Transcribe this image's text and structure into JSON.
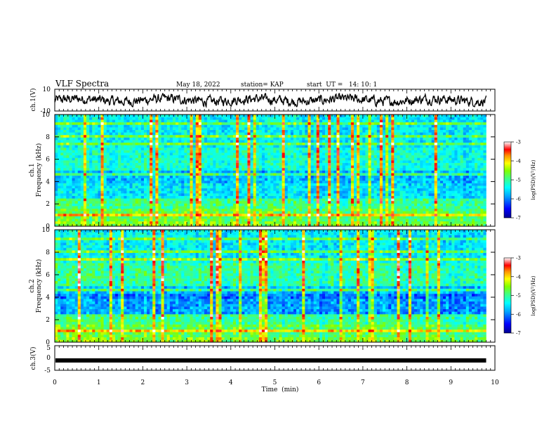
{
  "header": {
    "title": "VLF Spectra",
    "date": "May 18, 2022",
    "station": "station= KAP",
    "start_ut": "start  UT =   14: 10: 1"
  },
  "chart_data": [
    {
      "type": "line",
      "panel": "ch1-waveform",
      "ylabel": "ch.1(V)",
      "ylim": [
        -10,
        10
      ],
      "yticks": [
        "10",
        "-10"
      ],
      "xlim": [
        0,
        10
      ],
      "series": [
        {
          "description": "noisy waveform centred near 0 V, amplitude about ±5 V, spanning 0–9.8 min"
        }
      ]
    },
    {
      "type": "heatmap",
      "panel": "ch1-spectrogram",
      "ylabel": "ch.1\nFrequency  (kHz)",
      "ylim": [
        0,
        10
      ],
      "yticks": [
        "0",
        "2",
        "4",
        "6",
        "8",
        "10"
      ],
      "xlim": [
        0,
        10
      ],
      "data_extent_min": 9.8,
      "colorbar": {
        "label": "log(PSD)(V²/Hz)",
        "range": [
          -7,
          -3
        ],
        "ticks": [
          "-3",
          "-4",
          "-5",
          "-6",
          "-7"
        ]
      }
    },
    {
      "type": "heatmap",
      "panel": "ch2-spectrogram",
      "ylabel": "ch.2\nFrequency  (kHz)",
      "ylim": [
        0,
        10
      ],
      "yticks": [
        "0",
        "2",
        "4",
        "6",
        "8",
        "10"
      ],
      "xlim": [
        0,
        10
      ],
      "data_extent_min": 9.8,
      "colorbar": {
        "label": "log(PSD)(V²/Hz)",
        "range": [
          -7,
          -3
        ],
        "ticks": [
          "-3",
          "-4",
          "-5",
          "-6",
          "-7"
        ]
      }
    },
    {
      "type": "line",
      "panel": "ch3-waveform",
      "ylabel": "ch.3(V)",
      "ylim": [
        -5,
        5
      ],
      "yticks": [
        "5",
        "0",
        "-5"
      ],
      "xlim": [
        0,
        10
      ],
      "series": [
        {
          "description": "constant level near -1 V drawn as thick bar, 0–9.8 min"
        }
      ]
    }
  ],
  "xaxis": {
    "label": "Time  (min)",
    "ticks": [
      "0",
      "1",
      "2",
      "3",
      "4",
      "5",
      "6",
      "7",
      "8",
      "9",
      "10"
    ]
  },
  "colormap": [
    "#000090",
    "#0000ff",
    "#0090ff",
    "#00ffff",
    "#40ff90",
    "#90ff00",
    "#ffff00",
    "#ff9000",
    "#ff0000",
    "#ffffff"
  ]
}
